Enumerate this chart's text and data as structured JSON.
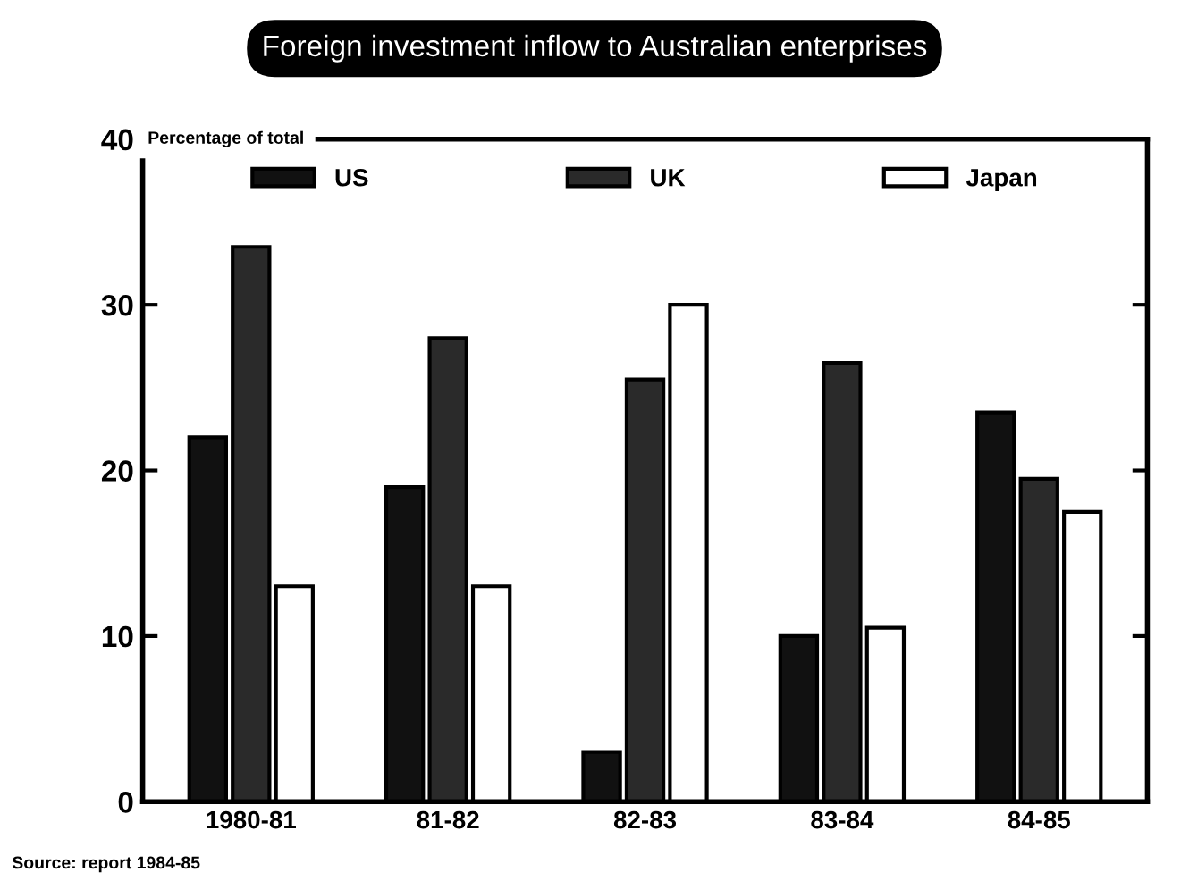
{
  "chart_data": {
    "type": "bar",
    "title": "Foreign investment inflow to Australian enterprises",
    "ylabel": "Percentage of total",
    "categories": [
      "1980-81",
      "81-82",
      "82-83",
      "83-84",
      "84-85"
    ],
    "series": [
      {
        "name": "US",
        "color": "#111111",
        "values": [
          22,
          19,
          3,
          10,
          23.5
        ]
      },
      {
        "name": "UK",
        "color": "#2a2a2a",
        "values": [
          33.5,
          28,
          25.5,
          26.5,
          19.5
        ]
      },
      {
        "name": "Japan",
        "color": "#ffffff",
        "values": [
          13,
          13,
          30,
          10.5,
          17.5
        ]
      }
    ],
    "ylim": [
      0,
      40
    ],
    "yticks": [
      0,
      10,
      20,
      30,
      40
    ],
    "grid": false,
    "legend": "top",
    "annotations": [
      "Source: report 1984-85"
    ]
  }
}
